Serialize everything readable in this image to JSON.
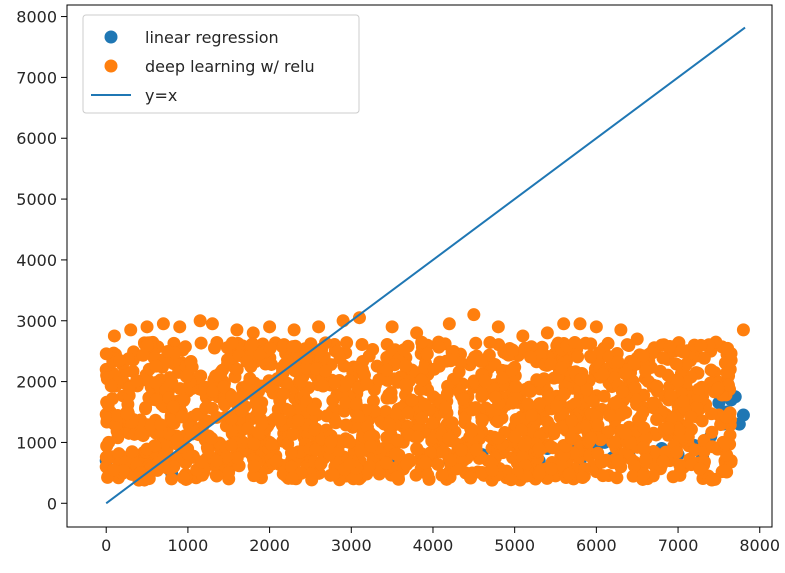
{
  "chart_data": {
    "type": "scatter",
    "title": "",
    "xlabel": "",
    "ylabel": "",
    "xlim": [
      -480,
      8150
    ],
    "ylim": [
      -390,
      8190
    ],
    "x_ticks": [
      0,
      1000,
      2000,
      3000,
      4000,
      5000,
      6000,
      7000,
      8000
    ],
    "y_ticks": [
      0,
      1000,
      2000,
      3000,
      4000,
      5000,
      6000,
      7000,
      8000
    ],
    "grid": false,
    "legend_position": "top-left",
    "legend": [
      {
        "label": "linear regression",
        "kind": "marker",
        "color": "#1f77b4"
      },
      {
        "label": "deep learning w/ relu",
        "kind": "marker",
        "color": "#ff7f0e"
      },
      {
        "label": "y=x",
        "kind": "line",
        "color": "#1f77b4"
      }
    ],
    "series": [
      {
        "name": "linear regression",
        "kind": "scatter",
        "color": "#1f77b4",
        "points": [
          [
            0,
            700
          ],
          [
            200,
            600
          ],
          [
            800,
            500
          ],
          [
            1500,
            550
          ],
          [
            2500,
            600
          ],
          [
            3500,
            650
          ],
          [
            4200,
            700
          ],
          [
            4600,
            800
          ],
          [
            5000,
            750
          ],
          [
            5300,
            700
          ],
          [
            5600,
            800
          ],
          [
            5800,
            700
          ],
          [
            6000,
            900
          ],
          [
            6200,
            750
          ],
          [
            6400,
            850
          ],
          [
            6600,
            700
          ],
          [
            6800,
            900
          ],
          [
            7000,
            800
          ],
          [
            7200,
            950
          ],
          [
            7300,
            750
          ],
          [
            7400,
            1100
          ],
          [
            7500,
            900
          ],
          [
            7550,
            1300
          ],
          [
            7600,
            1500
          ],
          [
            7650,
            1700
          ],
          [
            7700,
            1750
          ],
          [
            7750,
            1300
          ],
          [
            7800,
            1450
          ],
          [
            7500,
            1650
          ],
          [
            7100,
            1250
          ],
          [
            6900,
            1150
          ],
          [
            6500,
            1050
          ],
          [
            6100,
            1000
          ],
          [
            5700,
            950
          ],
          [
            5400,
            900
          ],
          [
            4900,
            950
          ]
        ]
      },
      {
        "name": "deep learning w/ relu",
        "kind": "scatter",
        "color": "#ff7f0e",
        "band": {
          "x_min": 0,
          "x_max": 7650,
          "y_min": 380,
          "y_max": 2650
        },
        "points": [
          [
            0,
            2200
          ],
          [
            100,
            2750
          ],
          [
            300,
            2850
          ],
          [
            500,
            2900
          ],
          [
            700,
            2950
          ],
          [
            900,
            2900
          ],
          [
            1150,
            3000
          ],
          [
            1300,
            2950
          ],
          [
            1600,
            2850
          ],
          [
            1800,
            2800
          ],
          [
            2000,
            2900
          ],
          [
            2300,
            2850
          ],
          [
            2600,
            2900
          ],
          [
            2900,
            3000
          ],
          [
            3100,
            3050
          ],
          [
            3500,
            2900
          ],
          [
            3800,
            2800
          ],
          [
            4200,
            2950
          ],
          [
            4500,
            3100
          ],
          [
            4800,
            2900
          ],
          [
            5100,
            2750
          ],
          [
            5400,
            2800
          ],
          [
            5600,
            2950
          ],
          [
            5800,
            2950
          ],
          [
            6000,
            2900
          ],
          [
            6300,
            2850
          ],
          [
            6500,
            2700
          ],
          [
            6800,
            2600
          ],
          [
            7000,
            2550
          ],
          [
            7200,
            2600
          ],
          [
            7400,
            2500
          ],
          [
            7600,
            2450
          ],
          [
            7800,
            2850
          ],
          [
            7650,
            2350
          ],
          [
            7450,
            2150
          ],
          [
            7300,
            1750
          ],
          [
            7000,
            1500
          ],
          [
            6900,
            1350
          ],
          [
            7100,
            1100
          ],
          [
            6700,
            1150
          ],
          [
            6400,
            1250
          ],
          [
            6200,
            1000
          ],
          [
            5900,
            1150
          ],
          [
            5600,
            950
          ],
          [
            5300,
            1000
          ],
          [
            5000,
            950
          ],
          [
            4700,
            1100
          ],
          [
            4400,
            1000
          ],
          [
            4100,
            950
          ],
          [
            3800,
            900
          ],
          [
            3500,
            850
          ],
          [
            3300,
            800
          ],
          [
            3100,
            700
          ],
          [
            2800,
            600
          ],
          [
            2500,
            500
          ],
          [
            2200,
            450
          ],
          [
            1900,
            420
          ],
          [
            1500,
            400
          ],
          [
            1100,
            420
          ],
          [
            800,
            400
          ],
          [
            400,
            380
          ],
          [
            150,
            420
          ],
          [
            0,
            600
          ],
          [
            50,
            1500
          ],
          [
            30,
            1000
          ],
          [
            4400,
            500
          ],
          [
            4900,
            420
          ],
          [
            5500,
            450
          ],
          [
            6000,
            520
          ],
          [
            6500,
            600
          ],
          [
            6900,
            700
          ],
          [
            7650,
            700
          ],
          [
            7300,
            900
          ],
          [
            5200,
            1250
          ],
          [
            4600,
            1350
          ],
          [
            5800,
            1400
          ],
          [
            6300,
            1450
          ],
          [
            7000,
            1600
          ],
          [
            7550,
            1000
          ],
          [
            7500,
            1450
          ],
          [
            6100,
            2150
          ],
          [
            6600,
            2050
          ],
          [
            5700,
            1900
          ],
          [
            4000,
            700
          ],
          [
            3600,
            600
          ],
          [
            3200,
            550
          ],
          [
            5200,
            600
          ],
          [
            4300,
            600
          ],
          [
            6700,
            850
          ],
          [
            7200,
            650
          ]
        ]
      },
      {
        "name": "y=x",
        "kind": "line",
        "color": "#1f77b4",
        "points": [
          [
            0,
            0
          ],
          [
            7820,
            7820
          ]
        ]
      }
    ]
  }
}
